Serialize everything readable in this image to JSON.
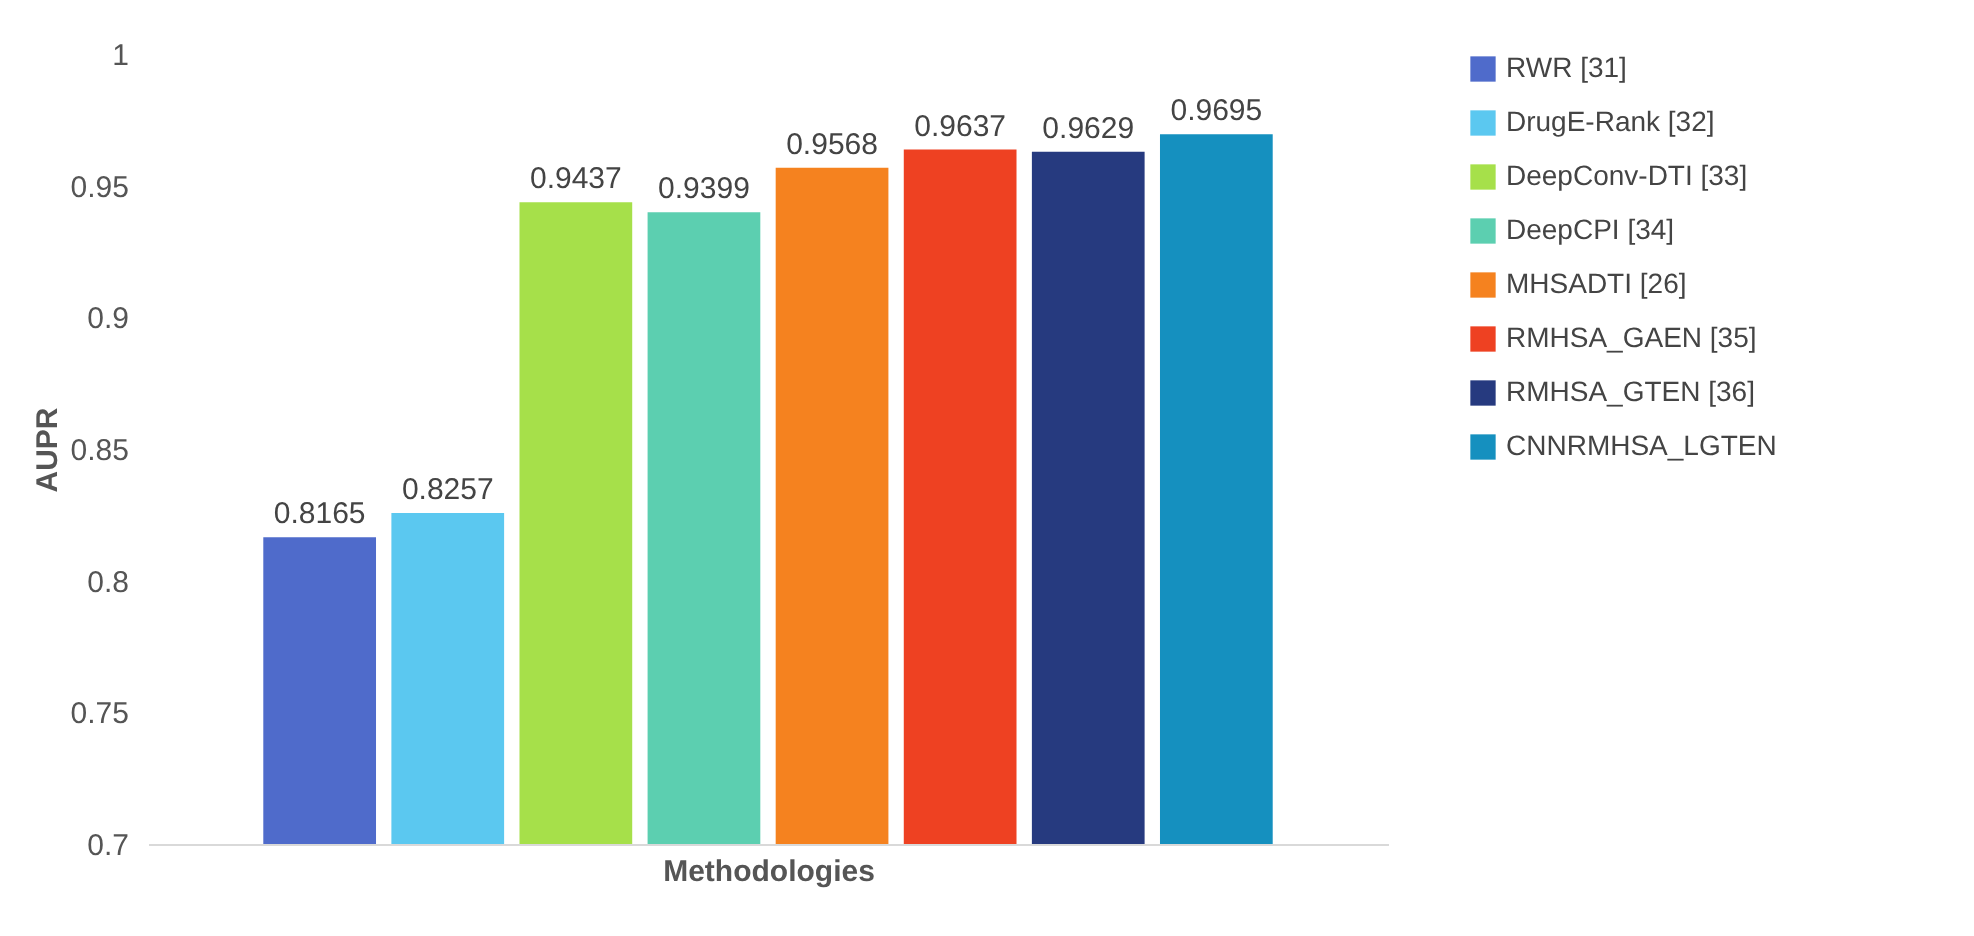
{
  "chart_data": {
    "type": "bar",
    "xlabel": "Methodologies",
    "ylabel": "AUPR",
    "categories": [
      null
    ],
    "series": [
      {
        "name": "RWR [31]",
        "color": "#4f6bcb",
        "values": [
          0.8165
        ]
      },
      {
        "name": "DrugE-Rank [32]",
        "color": "#5bc8f0",
        "values": [
          0.8257
        ]
      },
      {
        "name": "DeepConv-DTI [33]",
        "color": "#a6e04a",
        "values": [
          0.9437
        ]
      },
      {
        "name": "DeepCPI [34]",
        "color": "#5ccfb0",
        "values": [
          0.9399
        ]
      },
      {
        "name": "MHSADTI [26]",
        "color": "#f5821f",
        "values": [
          0.9568
        ]
      },
      {
        "name": "RMHSA_GAEN [35]",
        "color": "#ee4122",
        "values": [
          0.9637
        ]
      },
      {
        "name": "RMHSA_GTEN [36]",
        "color": "#263a7f",
        "values": [
          0.9629
        ]
      },
      {
        "name": "CNNRMHSA_LGTEN",
        "color": "#1590bf",
        "values": [
          0.9695
        ]
      }
    ],
    "ylim": [
      0.7,
      1
    ],
    "yticks": [
      0.7,
      0.75,
      0.8,
      0.85,
      0.9,
      0.95,
      1
    ],
    "grid": false,
    "legend": "right",
    "data_labels": true
  }
}
